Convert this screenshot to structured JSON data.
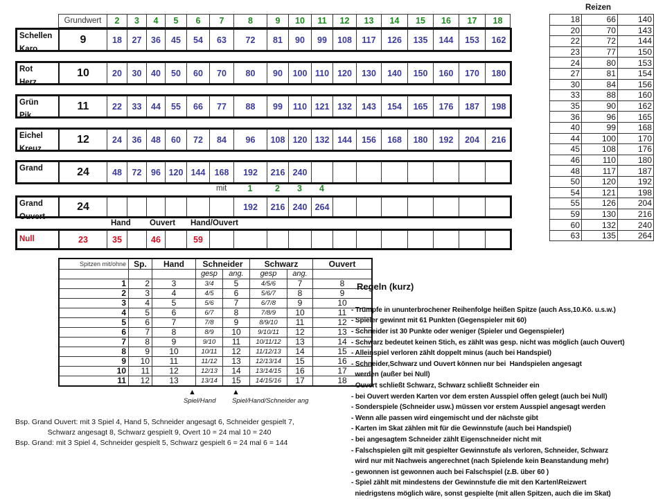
{
  "top_table": {
    "header_label": "Grundwert",
    "multipliers": [
      "2",
      "3",
      "4",
      "5",
      "6",
      "7",
      "8",
      "9",
      "10",
      "11",
      "12",
      "13",
      "14",
      "15",
      "16",
      "17",
      "18"
    ],
    "rows": [
      {
        "name": [
          "Schellen",
          "Karo"
        ],
        "grundwert": "9",
        "values": [
          "18",
          "27",
          "36",
          "45",
          "54",
          "63",
          "72",
          "81",
          "90",
          "99",
          "108",
          "117",
          "126",
          "135",
          "144",
          "153",
          "162"
        ]
      },
      {
        "name": [
          "Rot",
          "Herz"
        ],
        "grundwert": "10",
        "values": [
          "20",
          "30",
          "40",
          "50",
          "60",
          "70",
          "80",
          "90",
          "100",
          "110",
          "120",
          "130",
          "140",
          "150",
          "160",
          "170",
          "180"
        ]
      },
      {
        "name": [
          "Grün",
          "Pik"
        ],
        "grundwert": "11",
        "values": [
          "22",
          "33",
          "44",
          "55",
          "66",
          "77",
          "88",
          "99",
          "110",
          "121",
          "132",
          "143",
          "154",
          "165",
          "176",
          "187",
          "198"
        ]
      },
      {
        "name": [
          "Eichel",
          "Kreuz"
        ],
        "grundwert": "12",
        "values": [
          "24",
          "36",
          "48",
          "60",
          "72",
          "84",
          "96",
          "108",
          "120",
          "132",
          "144",
          "156",
          "168",
          "180",
          "192",
          "204",
          "216"
        ]
      },
      {
        "name": [
          "Grand"
        ],
        "grundwert": "24",
        "values": [
          "48",
          "72",
          "96",
          "120",
          "144",
          "168",
          "192",
          "216",
          "240",
          "",
          "",
          "",
          "",
          "",
          "",
          "",
          ""
        ]
      }
    ],
    "mit_label": "mit",
    "mit_values": [
      "1",
      "2",
      "3",
      "4"
    ],
    "grand_ouvert": {
      "name": [
        "Grand",
        "Ouvert"
      ],
      "grundwert": "24",
      "values": [
        "",
        "",
        "",
        "",
        "",
        "",
        "192",
        "216",
        "240",
        "264",
        "",
        "",
        "",
        "",
        "",
        "",
        ""
      ]
    },
    "null_labels": {
      "hand": "Hand",
      "ouvert": "Ouvert",
      "hand_ouvert": "Hand/Ouvert"
    },
    "null_row": {
      "name": "Null",
      "grundwert": "23",
      "hand": "35",
      "ouvert": "46",
      "hand_ouvert": "59"
    }
  },
  "spitzen_table": {
    "headers": [
      "Spitzen mit/ohne",
      "Sp.",
      "Hand",
      "Schneider",
      "Schwarz",
      "Ouvert"
    ],
    "subheaders": [
      "gesp",
      "ang.",
      "gesp",
      "ang."
    ],
    "rows": [
      [
        "1",
        "2",
        "3",
        "3/4",
        "5",
        "4/5/6",
        "7",
        "8"
      ],
      [
        "2",
        "3",
        "4",
        "4/5",
        "6",
        "5/6/7",
        "8",
        "9"
      ],
      [
        "3",
        "4",
        "5",
        "5/6",
        "7",
        "6/7/8",
        "9",
        "10"
      ],
      [
        "4",
        "5",
        "6",
        "6/7",
        "8",
        "7/8/9",
        "10",
        "11"
      ],
      [
        "5",
        "6",
        "7",
        "7/8",
        "9",
        "8/9/10",
        "11",
        "12"
      ],
      [
        "6",
        "7",
        "8",
        "8/9",
        "10",
        "9/10/11",
        "12",
        "13"
      ],
      [
        "7",
        "8",
        "9",
        "9/10",
        "11",
        "10/11/12",
        "13",
        "14"
      ],
      [
        "8",
        "9",
        "10",
        "10/11",
        "12",
        "11/12/13",
        "14",
        "15"
      ],
      [
        "9",
        "10",
        "11",
        "11/12",
        "13",
        "12/13/14",
        "15",
        "16"
      ],
      [
        "10",
        "11",
        "12",
        "12/13",
        "14",
        "13/14/15",
        "16",
        "17"
      ],
      [
        "11",
        "12",
        "13",
        "13/14",
        "15",
        "14/15/16",
        "17",
        "18"
      ]
    ],
    "note_1": "Spiel/Hand",
    "note_2": "Spiel/Hand/Schneider ang"
  },
  "reizen": {
    "title": "Reizen",
    "rows": [
      [
        "18",
        "66",
        "140"
      ],
      [
        "20",
        "70",
        "143"
      ],
      [
        "22",
        "72",
        "144"
      ],
      [
        "23",
        "77",
        "150"
      ],
      [
        "24",
        "80",
        "153"
      ],
      [
        "27",
        "81",
        "154"
      ],
      [
        "30",
        "84",
        "156"
      ],
      [
        "33",
        "88",
        "160"
      ],
      [
        "35",
        "90",
        "162"
      ],
      [
        "36",
        "96",
        "165"
      ],
      [
        "40",
        "99",
        "168"
      ],
      [
        "44",
        "100",
        "170"
      ],
      [
        "45",
        "108",
        "176"
      ],
      [
        "46",
        "110",
        "180"
      ],
      [
        "48",
        "117",
        "187"
      ],
      [
        "50",
        "120",
        "192"
      ],
      [
        "54",
        "121",
        "198"
      ],
      [
        "55",
        "126",
        "204"
      ],
      [
        "59",
        "130",
        "216"
      ],
      [
        "60",
        "132",
        "240"
      ],
      [
        "63",
        "135",
        "264"
      ]
    ]
  },
  "rules": {
    "title": "Regeln (kurz)",
    "lines": [
      "- Trümpfe in ununterbrochener Reihenfolge heißen Spitze (auch Ass,10.Kö. u.s.w.)",
      "- Spieler gewinnt mit 61 Punkten (Gegenspieler mit 60)",
      "- Schneider ist 30 Punkte oder weniger (Spieler und Gegenspieler)",
      "- Schwarz bedeutet keinen Stich, es zählt was gesp. nicht was möglich (auch Ouvert)",
      "- Alleinspiel verloren zählt doppelt minus (auch bei Handspiel)",
      "- Schneider,Schwarz und Ouvert können nur bei  Handspielen angesagt",
      "  werden (außer bei Null)",
      "- Ouvert schließt Schwarz, Schwarz schließt Schneider ein",
      "- bei Ouvert werden Karten vor dem ersten Ausspiel offen gelegt (auch bei Null)",
      "- Sonderspiele (Schneider usw.) müssen vor erstem Ausspiel angesagt werden",
      "- Wenn alle passen wird eingemischt und der nächste gibt",
      "- Karten im Skat zählen mit für die Gewinnstufe (auch bei Handspiel)",
      "- bei angesagtem Schneider zählt Eigenschneider nicht mit",
      "- Falschspielen gilt mit gespielter Gewinnstufe als verloren, Schneider, Schwarz",
      "  wird nur mit Nachweis angerechnet (nach Spielende kein Beanstandung mehr)",
      "- gewonnen ist gewonnen auch bei Falschspiel (z.B. über 60 )",
      "- Spiel zählt mit mindestens der Gewinnstufe die mit den Karten\\Reizwert",
      "  niedrigstens möglich wäre, sonst gespielte (mit allen Spitzen, auch die im Skat)"
    ]
  },
  "examples": [
    "Bsp. Grand Ouvert: mit 3 Spiel 4, Hand 5, Schneider angesagt 6, Schneider gespielt 7,",
    "                Schwarz angesagt 8, Schwarz gespielt 9, Overt 10 = 24 mal 10 = 240",
    "Bsp. Grand: mit 3 Spiel 4, Schneider gespielt 5, Schwarz gespielt 6 = 24 mal 6 = 144"
  ],
  "colors": {
    "multiplier": "#1d8a1d",
    "value": "#3a3a9a",
    "null": "#cc1122"
  }
}
